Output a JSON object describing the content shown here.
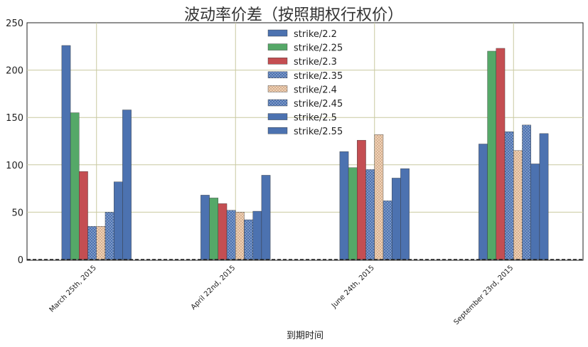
{
  "chart_data": {
    "type": "bar",
    "title": "波动率价差（按照期权行权价）",
    "xlabel": "到期时间",
    "ylabel": "",
    "ylim": [
      0,
      250
    ],
    "yticks": [
      0,
      50,
      100,
      150,
      200,
      250
    ],
    "grid": true,
    "legend_position": "top-center",
    "categories": [
      "March 25th, 2015",
      "April 22nd, 2015",
      "June 24th, 2015",
      "September 23rd, 2015"
    ],
    "series": [
      {
        "name": "strike/2.2",
        "color": "#4c72b0",
        "pattern": "solid",
        "values": [
          226,
          68,
          114,
          122
        ]
      },
      {
        "name": "strike/2.25",
        "color": "#55a868",
        "pattern": "solid",
        "values": [
          155,
          65,
          97,
          220
        ]
      },
      {
        "name": "strike/2.3",
        "color": "#c44e52",
        "pattern": "solid",
        "values": [
          93,
          59,
          126,
          223
        ]
      },
      {
        "name": "strike/2.35",
        "color": "#4c72b0",
        "pattern": "dots",
        "values": [
          35,
          52,
          95,
          135
        ]
      },
      {
        "name": "strike/2.4",
        "color": "#e8c4a4",
        "pattern": "dots",
        "values": [
          35,
          50,
          132,
          115
        ]
      },
      {
        "name": "strike/2.45",
        "color": "#4c72b0",
        "pattern": "dots",
        "values": [
          50,
          42,
          62,
          142
        ]
      },
      {
        "name": "strike/2.5",
        "color": "#4c72b0",
        "pattern": "solid",
        "values": [
          82,
          51,
          86,
          101
        ]
      },
      {
        "name": "strike/2.55",
        "color": "#4c72b0",
        "pattern": "solid",
        "values": [
          158,
          89,
          96,
          133
        ]
      }
    ]
  }
}
